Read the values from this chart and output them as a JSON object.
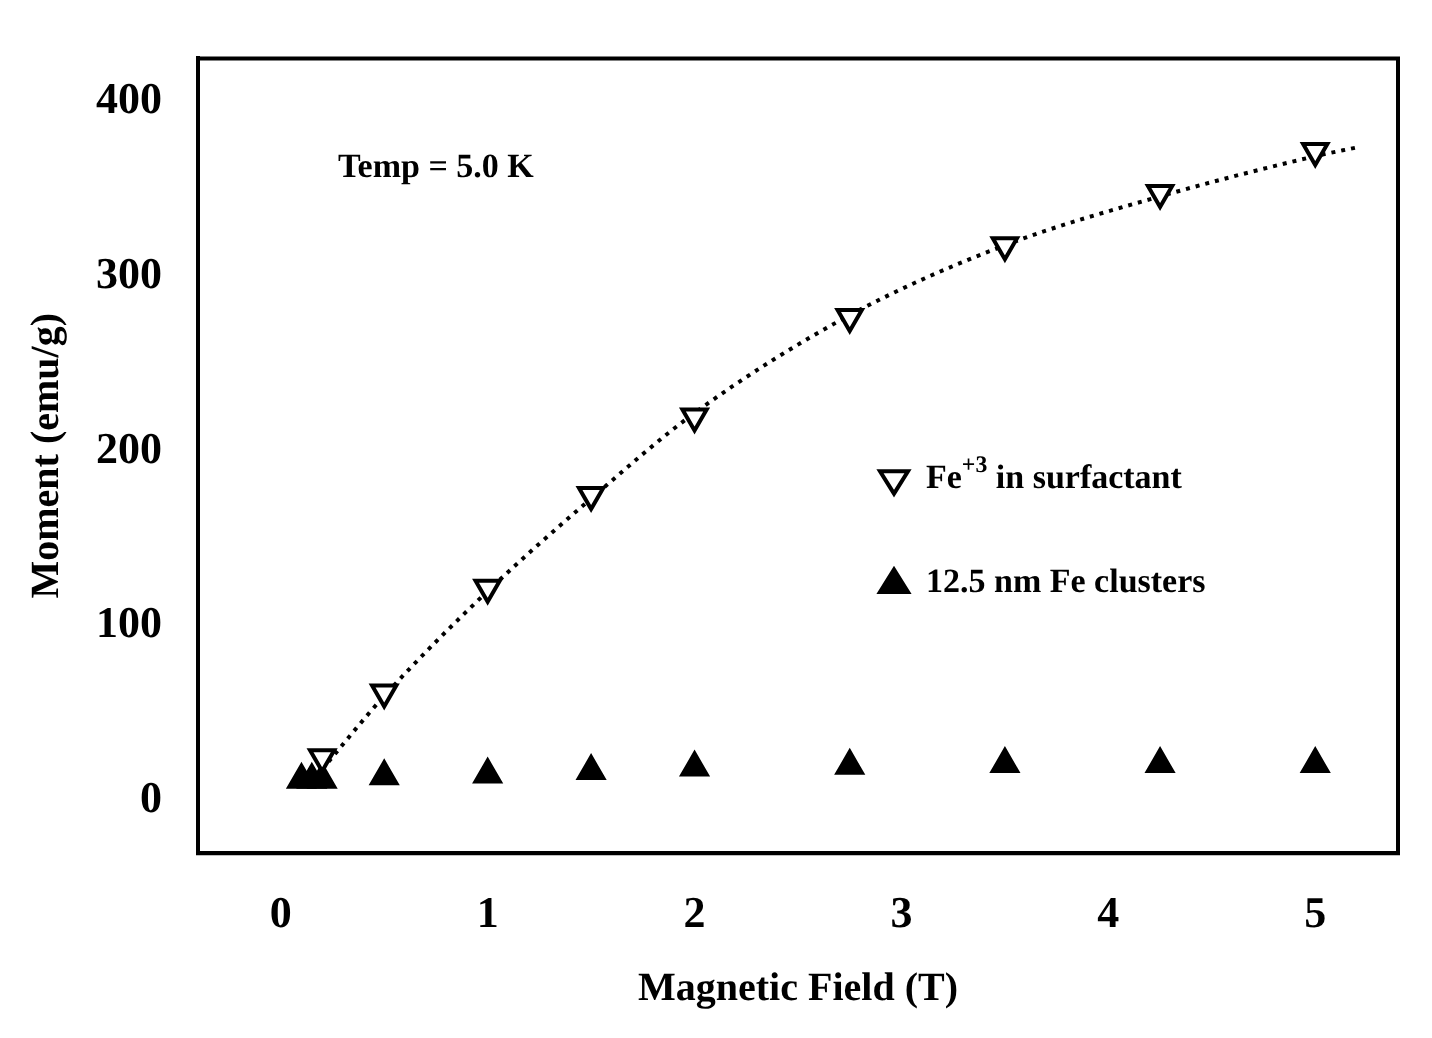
{
  "chart_data": {
    "type": "scatter",
    "xlabel": "Magnetic Field (T)",
    "ylabel": "Moment (emu/g)",
    "annotations": [
      "Temp = 5.0 K"
    ],
    "xlim": [
      -0.4,
      5.4
    ],
    "xticks": [
      0,
      1,
      2,
      3,
      4,
      5
    ],
    "ylim": [
      -30,
      425
    ],
    "yticks": [
      0,
      100,
      200,
      300,
      400
    ],
    "grid": false,
    "legend": "right",
    "marker": "triangle",
    "series": [
      {
        "name": "Fe$^{+3}$ in surfactant",
        "color": "#000000",
        "x": [
          0.2,
          0.5,
          1,
          1.5,
          2,
          2.75,
          3.5,
          4.25,
          5
        ],
        "values": [
          25,
          62,
          122,
          175,
          220,
          277,
          318,
          348,
          372
        ]
      },
      {
        "name": "12.5 nm Fe clusters",
        "color": "#000000",
        "x": [
          0.1,
          0.15,
          0.2,
          0.5,
          1,
          1.5,
          2,
          2.75,
          3.5,
          4.25,
          5
        ],
        "values": [
          12,
          12,
          12,
          14,
          15,
          17,
          19,
          20,
          21,
          21,
          21
        ]
      },
      {
        "type": "line",
        "line_style": "dotted",
        "marker": "none",
        "color": "#000000",
        "x": [
          0.2,
          0.5,
          1,
          1.5,
          2,
          2.75,
          3.5,
          4.25,
          5,
          5.2
        ],
        "values": [
          18,
          60,
          120,
          173,
          222,
          278,
          318,
          346,
          369,
          374
        ]
      }
    ]
  }
}
